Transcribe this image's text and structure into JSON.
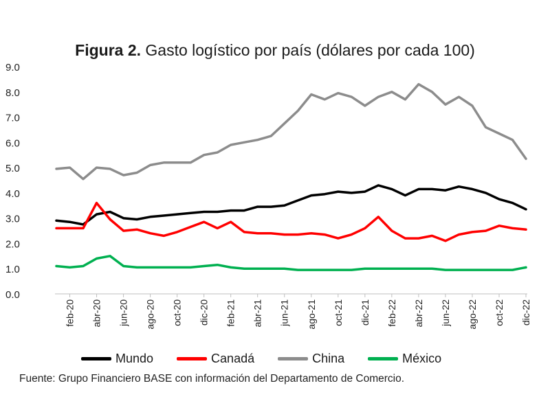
{
  "chart_data": {
    "type": "line",
    "title_bold": "Figura 2.",
    "title_rest": " Gasto logístico por país (dólares por cada 100)",
    "source": "Fuente: Grupo Financiero BASE con información del Departamento de Comercio.",
    "ylim": [
      0,
      9
    ],
    "yticks": [
      "0.0",
      "1.0",
      "2.0",
      "3.0",
      "4.0",
      "5.0",
      "6.0",
      "7.0",
      "8.0",
      "9.0"
    ],
    "xtick_labels": [
      "feb-20",
      "abr-20",
      "jun-20",
      "ago-20",
      "oct-20",
      "dic-20",
      "feb-21",
      "abr-21",
      "jun-21",
      "ago-21",
      "oct-21",
      "dic-21",
      "feb-22",
      "abr-22",
      "jun-22",
      "ago-22",
      "oct-22",
      "dic-22"
    ],
    "x": [
      "ene-20",
      "feb-20",
      "mar-20",
      "abr-20",
      "may-20",
      "jun-20",
      "jul-20",
      "ago-20",
      "sep-20",
      "oct-20",
      "nov-20",
      "dic-20",
      "ene-21",
      "feb-21",
      "mar-21",
      "abr-21",
      "may-21",
      "jun-21",
      "jul-21",
      "ago-21",
      "sep-21",
      "oct-21",
      "nov-21",
      "dic-21",
      "ene-22",
      "feb-22",
      "mar-22",
      "abr-22",
      "may-22",
      "jun-22",
      "jul-22",
      "ago-22",
      "sep-22",
      "oct-22",
      "nov-22",
      "dic-22"
    ],
    "series": [
      {
        "name": "Mundo",
        "color": "#000000",
        "values": [
          2.9,
          2.85,
          2.75,
          3.15,
          3.25,
          3.0,
          2.95,
          3.05,
          3.1,
          3.15,
          3.2,
          3.25,
          3.25,
          3.3,
          3.3,
          3.45,
          3.45,
          3.5,
          3.7,
          3.9,
          3.95,
          4.05,
          4.0,
          4.05,
          4.3,
          4.15,
          3.9,
          4.15,
          4.15,
          4.1,
          4.25,
          4.15,
          4.0,
          3.75,
          3.6,
          3.35
        ]
      },
      {
        "name": "Canadá",
        "color": "#ff0000",
        "values": [
          2.6,
          2.6,
          2.6,
          3.6,
          2.95,
          2.5,
          2.55,
          2.4,
          2.3,
          2.45,
          2.65,
          2.85,
          2.6,
          2.85,
          2.45,
          2.4,
          2.4,
          2.35,
          2.35,
          2.4,
          2.35,
          2.2,
          2.35,
          2.6,
          3.05,
          2.5,
          2.2,
          2.2,
          2.3,
          2.1,
          2.35,
          2.45,
          2.5,
          2.7,
          2.6,
          2.55
        ]
      },
      {
        "name": "China",
        "color": "#8c8c8c",
        "values": [
          4.95,
          5.0,
          4.55,
          5.0,
          4.95,
          4.7,
          4.8,
          5.1,
          5.2,
          5.2,
          5.2,
          5.5,
          5.6,
          5.9,
          6.0,
          6.1,
          6.25,
          6.75,
          7.25,
          7.9,
          7.7,
          7.95,
          7.8,
          7.45,
          7.8,
          8.0,
          7.7,
          8.3,
          8.0,
          7.5,
          7.8,
          7.45,
          6.6,
          6.35,
          6.1,
          5.35
        ]
      },
      {
        "name": "México",
        "color": "#00b050",
        "values": [
          1.1,
          1.05,
          1.1,
          1.4,
          1.5,
          1.1,
          1.05,
          1.05,
          1.05,
          1.05,
          1.05,
          1.1,
          1.15,
          1.05,
          1.0,
          1.0,
          1.0,
          1.0,
          0.95,
          0.95,
          0.95,
          0.95,
          0.95,
          1.0,
          1.0,
          1.0,
          1.0,
          1.0,
          1.0,
          0.95,
          0.95,
          0.95,
          0.95,
          0.95,
          0.95,
          1.05
        ]
      }
    ]
  }
}
